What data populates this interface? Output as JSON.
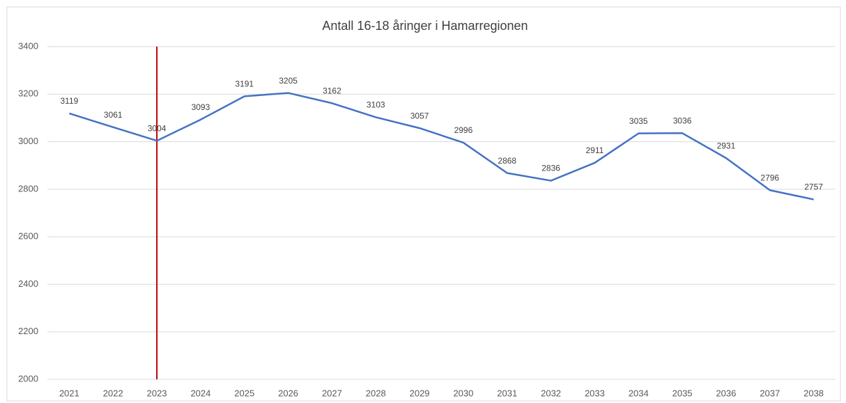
{
  "chart_data": {
    "type": "line",
    "title": "Antall 16-18 åringer i Hamarregionen",
    "categories": [
      "2021",
      "2022",
      "2023",
      "2024",
      "2025",
      "2026",
      "2027",
      "2028",
      "2029",
      "2030",
      "2031",
      "2032",
      "2033",
      "2034",
      "2035",
      "2036",
      "2037",
      "2038"
    ],
    "values": [
      3119,
      3061,
      3004,
      3093,
      3191,
      3205,
      3162,
      3103,
      3057,
      2996,
      2868,
      2836,
      2911,
      3035,
      3036,
      2931,
      2796,
      2757
    ],
    "color": "#4472c4",
    "ylim": [
      2000,
      3400
    ],
    "yticks": [
      2000,
      2200,
      2400,
      2600,
      2800,
      3000,
      3200,
      3400
    ],
    "grid": true,
    "reference_line": {
      "category": "2023",
      "color": "#c00000"
    }
  }
}
